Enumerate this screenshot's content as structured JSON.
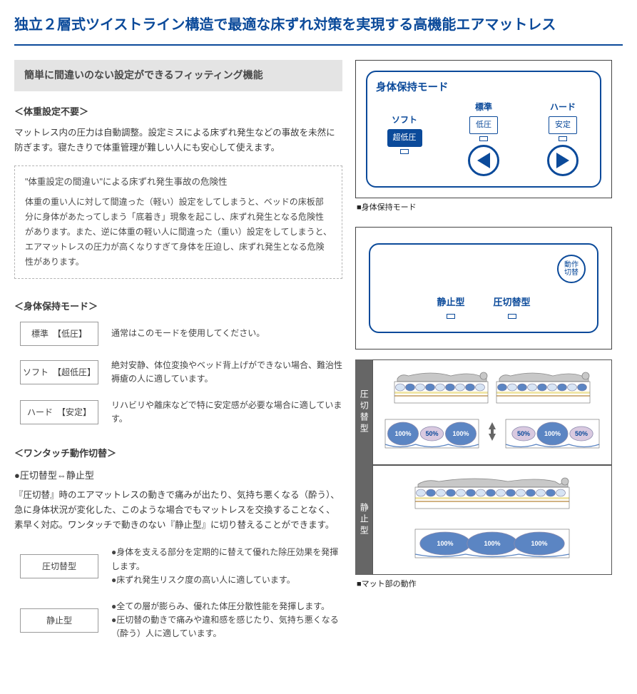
{
  "title": "独立２層式ツイストライン構造で最適な床ずれ対策を実現する高機能エアマットレス",
  "subtitle": "簡単に間違いのない設定ができるフィッティング機能",
  "sec1": {
    "head": "＜体重設定不要＞",
    "body": "マットレス内の圧力は自動調整。設定ミスによる床ずれ発生などの事故を未然に防ぎます。寝たきりで体重管理が難しい人にも安心して使えます。"
  },
  "note": {
    "title": "\"体重設定の間違い\"による床ずれ発生事故の危険性",
    "body": "体重の重い人に対して間違った（軽い）設定をしてしまうと、ベッドの床板部分に身体があたってしまう「底着き」現象を起こし、床ずれ発生となる危険性があります。また、逆に体重の軽い人に間違った（重い）設定をしてしまうと、エアマットレスの圧力が高くなりすぎて身体を圧迫し、床ずれ発生となる危険性があります。"
  },
  "modes": {
    "head": "＜身体保持モード＞",
    "rows": [
      {
        "chip": "標準　【低圧】",
        "desc": "通常はこのモードを使用してください。"
      },
      {
        "chip": "ソフト　【超低圧】",
        "desc": "絶対安静、体位変換やベッド背上げができない場合、難治性褥瘡の人に適しています。"
      },
      {
        "chip": "ハード　【安定】",
        "desc": "リハビリや離床などで特に安定感が必要な場合に適しています。"
      }
    ]
  },
  "switch": {
    "head": "＜ワンタッチ動作切替＞",
    "bullet_head": "●圧切替型⇔静止型",
    "body": "『圧切替』時のエアマットレスの動きで痛みが出たり、気持ち悪くなる（酔う）、急に身体状況が変化した、このような場合でもマットレスを交換することなく、素早く対応。ワンタッチで動きのない『静止型』に切り替えることができます。",
    "rows": [
      {
        "chip": "圧切替型",
        "desc": "●身体を支える部分を定期的に替えて優れた除圧効果を発揮します。\n●床ずれ発生リスク度の高い人に適しています。"
      },
      {
        "chip": "静止型",
        "desc": "●全ての層が膨らみ、優れた体圧分散性能を発揮します。\n●圧切替の動きで痛みや違和感を感じたり、気持ち悪くなる（酔う）人に適しています。"
      }
    ]
  },
  "right": {
    "panel1_caption": "■身体保持モード",
    "panel2_caption": "■マット部の動作",
    "ctrl1": {
      "title": "身体保持モード",
      "cols": [
        {
          "top": "ソフト",
          "box": "超低圧",
          "pill": true
        },
        {
          "top": "標準",
          "box": "低圧",
          "pill": false
        },
        {
          "top": "ハード",
          "box": "安定",
          "pill": false
        }
      ]
    },
    "ctrl2": {
      "btn_line1": "動作",
      "btn_line2": "切替",
      "opts": [
        "静止型",
        "圧切替型"
      ]
    },
    "mat_tabs": [
      "圧切替型",
      "静止型"
    ],
    "percents_row1a": [
      "100%",
      "50%",
      "100%"
    ],
    "percents_row1b": [
      "50%",
      "100%",
      "50%"
    ],
    "percents_row2": [
      "100%",
      "100%",
      "100%"
    ],
    "colors": {
      "navy": "#0b4a9a",
      "body": "#c8c8c8",
      "cell_lt": "#d7e4f4",
      "cell_bl": "#5b85c3",
      "cell_pk": "#d9c9e0",
      "line": "#6a6a6a",
      "yellow": "#f0e6a8"
    }
  }
}
